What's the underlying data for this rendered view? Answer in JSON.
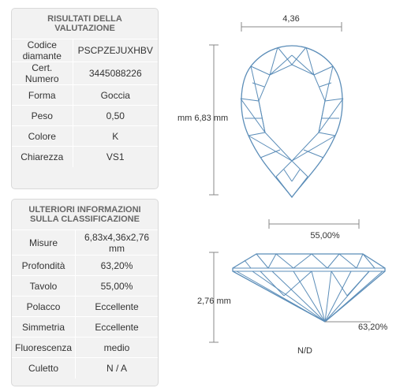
{
  "results": {
    "title": "RISULTATI DELLA VALUTAZIONE",
    "rows": [
      {
        "label": "Codice diamante",
        "value": "PSCPZEJUXHBV"
      },
      {
        "label": "Cert. Numero",
        "value": "3445088226"
      },
      {
        "label": "Forma",
        "value": "Goccia"
      },
      {
        "label": "Peso",
        "value": "0,50"
      },
      {
        "label": "Colore",
        "value": "K"
      },
      {
        "label": "Chiarezza",
        "value": "VS1"
      }
    ]
  },
  "extra": {
    "title": "ULTERIORI INFORMAZIONI SULLA CLASSIFICAZIONE",
    "rows": [
      {
        "label": "Misure",
        "value": "6,83x4,36x2,76 mm"
      },
      {
        "label": "Profondità",
        "value": "63,20%"
      },
      {
        "label": "Tavolo",
        "value": "55,00%"
      },
      {
        "label": "Polacco",
        "value": "Eccellente"
      },
      {
        "label": "Simmetria",
        "value": "Eccellente"
      },
      {
        "label": "Fluorescenza",
        "value": "medio"
      },
      {
        "label": "Culetto",
        "value": "N / A"
      }
    ]
  },
  "diagram": {
    "width_label": "4,36",
    "length_label": "mm 6,83 mm",
    "table_label": "55,00%",
    "depth_label": "2,76 mm",
    "depth_pct_label": "63,20%",
    "culet_label": "N/D",
    "line_color": "#5b8db8",
    "dim_color": "#888888"
  }
}
